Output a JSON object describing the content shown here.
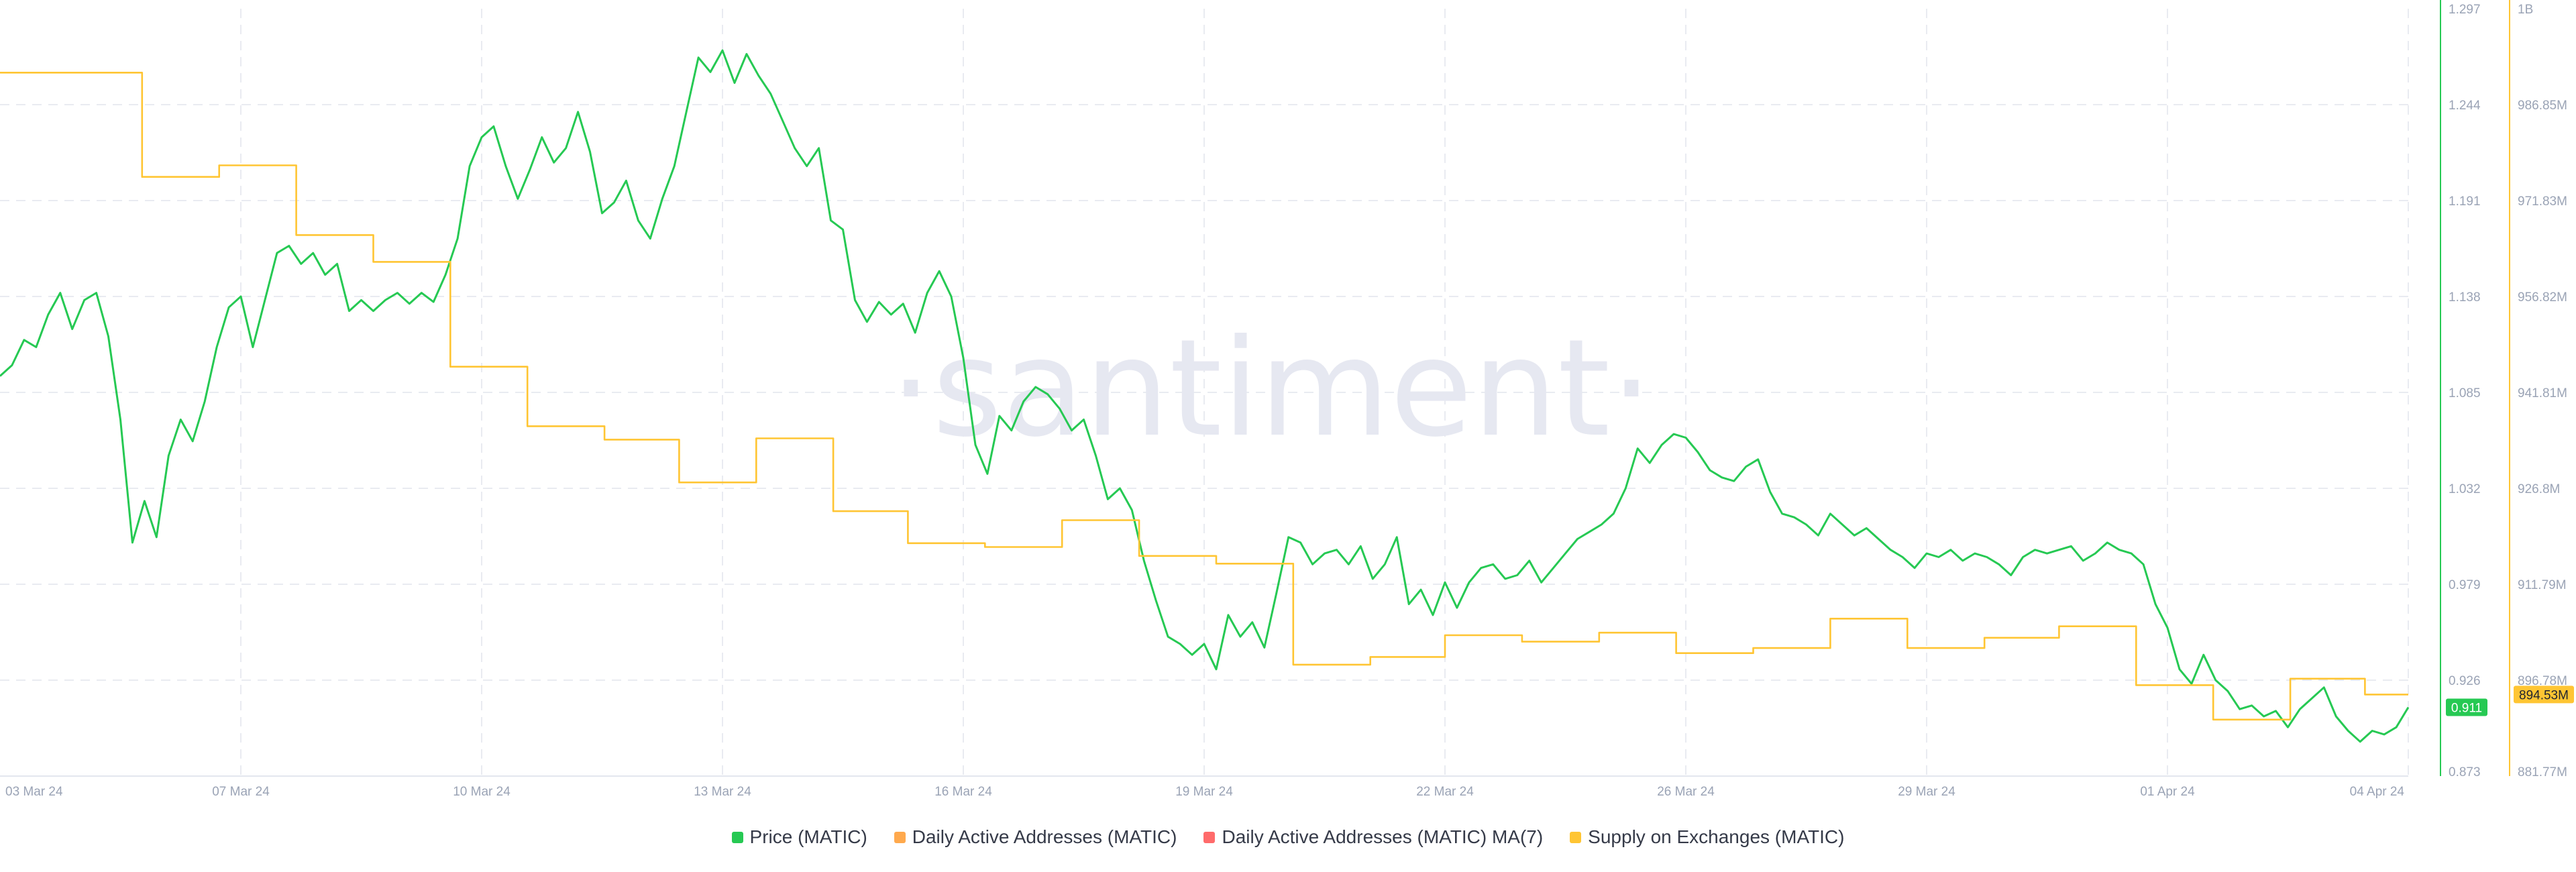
{
  "watermark": "·santiment·",
  "chart_data": {
    "type": "line",
    "grid": true,
    "legend_placement": "bottom-center",
    "x_ticks": [
      "03 Mar 24",
      "07 Mar 24",
      "10 Mar 24",
      "13 Mar 24",
      "16 Mar 24",
      "19 Mar 24",
      "22 Mar 24",
      "26 Mar 24",
      "29 Mar 24",
      "01 Apr 24",
      "04 Apr 24"
    ],
    "x_range": [
      0,
      1000
    ],
    "price_axis": {
      "ticks": [
        "1.297",
        "1.244",
        "1.191",
        "1.138",
        "1.085",
        "1.032",
        "0.979",
        "0.926",
        "0.873"
      ],
      "range": [
        0.873,
        1.297
      ],
      "color": "#26c953",
      "current_value_label": "0.911"
    },
    "supply_axis": {
      "ticks": [
        "1B",
        "986.85M",
        "971.83M",
        "956.82M",
        "941.81M",
        "926.8M",
        "911.79M",
        "896.78M",
        "881.77M"
      ],
      "range": [
        881.77,
        1001.8
      ],
      "unit": "M",
      "color": "#ffc533",
      "current_value_label": "894.53M"
    },
    "series": [
      {
        "name": "Price (MATIC)",
        "axis": "price",
        "color": "#26c953",
        "points": [
          [
            0,
            1.094
          ],
          [
            5,
            1.1
          ],
          [
            10,
            1.114
          ],
          [
            15,
            1.11
          ],
          [
            20,
            1.128
          ],
          [
            25,
            1.14
          ],
          [
            30,
            1.12
          ],
          [
            35,
            1.136
          ],
          [
            40,
            1.14
          ],
          [
            45,
            1.116
          ],
          [
            50,
            1.07
          ],
          [
            55,
            1.002
          ],
          [
            60,
            1.025
          ],
          [
            65,
            1.005
          ],
          [
            70,
            1.05
          ],
          [
            75,
            1.07
          ],
          [
            80,
            1.058
          ],
          [
            85,
            1.08
          ],
          [
            90,
            1.11
          ],
          [
            95,
            1.132
          ],
          [
            100,
            1.138
          ],
          [
            105,
            1.11
          ],
          [
            110,
            1.136
          ],
          [
            115,
            1.162
          ],
          [
            120,
            1.166
          ],
          [
            125,
            1.156
          ],
          [
            130,
            1.162
          ],
          [
            135,
            1.15
          ],
          [
            140,
            1.156
          ],
          [
            145,
            1.13
          ],
          [
            150,
            1.136
          ],
          [
            155,
            1.13
          ],
          [
            160,
            1.136
          ],
          [
            165,
            1.14
          ],
          [
            170,
            1.134
          ],
          [
            175,
            1.14
          ],
          [
            180,
            1.135
          ],
          [
            185,
            1.15
          ],
          [
            190,
            1.17
          ],
          [
            195,
            1.21
          ],
          [
            200,
            1.226
          ],
          [
            205,
            1.232
          ],
          [
            210,
            1.21
          ],
          [
            215,
            1.192
          ],
          [
            220,
            1.208
          ],
          [
            225,
            1.226
          ],
          [
            230,
            1.212
          ],
          [
            235,
            1.22
          ],
          [
            240,
            1.24
          ],
          [
            245,
            1.218
          ],
          [
            250,
            1.184
          ],
          [
            255,
            1.19
          ],
          [
            260,
            1.202
          ],
          [
            265,
            1.18
          ],
          [
            270,
            1.17
          ],
          [
            275,
            1.192
          ],
          [
            280,
            1.21
          ],
          [
            285,
            1.24
          ],
          [
            290,
            1.27
          ],
          [
            295,
            1.262
          ],
          [
            300,
            1.274
          ],
          [
            305,
            1.256
          ],
          [
            310,
            1.272
          ],
          [
            315,
            1.26
          ],
          [
            320,
            1.25
          ],
          [
            325,
            1.235
          ],
          [
            330,
            1.22
          ],
          [
            335,
            1.21
          ],
          [
            340,
            1.22
          ],
          [
            345,
            1.18
          ],
          [
            350,
            1.175
          ],
          [
            355,
            1.136
          ],
          [
            360,
            1.124
          ],
          [
            365,
            1.135
          ],
          [
            370,
            1.128
          ],
          [
            375,
            1.134
          ],
          [
            380,
            1.118
          ],
          [
            385,
            1.14
          ],
          [
            390,
            1.152
          ],
          [
            395,
            1.138
          ],
          [
            400,
            1.104
          ],
          [
            405,
            1.056
          ],
          [
            410,
            1.04
          ],
          [
            415,
            1.072
          ],
          [
            420,
            1.064
          ],
          [
            425,
            1.08
          ],
          [
            430,
            1.088
          ],
          [
            435,
            1.084
          ],
          [
            440,
            1.076
          ],
          [
            445,
            1.064
          ],
          [
            450,
            1.07
          ],
          [
            455,
            1.05
          ],
          [
            460,
            1.026
          ],
          [
            465,
            1.032
          ],
          [
            470,
            1.02
          ],
          [
            475,
            0.992
          ],
          [
            480,
            0.97
          ],
          [
            485,
            0.95
          ],
          [
            490,
            0.946
          ],
          [
            495,
            0.94
          ],
          [
            500,
            0.946
          ],
          [
            505,
            0.932
          ],
          [
            510,
            0.962
          ],
          [
            515,
            0.95
          ],
          [
            520,
            0.958
          ],
          [
            525,
            0.944
          ],
          [
            530,
            0.974
          ],
          [
            535,
            1.005
          ],
          [
            540,
            1.002
          ],
          [
            545,
            0.99
          ],
          [
            550,
            0.996
          ],
          [
            555,
            0.998
          ],
          [
            560,
            0.99
          ],
          [
            565,
            1.0
          ],
          [
            570,
            0.982
          ],
          [
            575,
            0.99
          ],
          [
            580,
            1.005
          ],
          [
            585,
            0.968
          ],
          [
            590,
            0.976
          ],
          [
            595,
            0.962
          ],
          [
            600,
            0.98
          ],
          [
            605,
            0.966
          ],
          [
            610,
            0.98
          ],
          [
            615,
            0.988
          ],
          [
            620,
            0.99
          ],
          [
            625,
            0.982
          ],
          [
            630,
            0.984
          ],
          [
            635,
            0.992
          ],
          [
            640,
            0.98
          ],
          [
            645,
            0.988
          ],
          [
            650,
            0.996
          ],
          [
            655,
            1.004
          ],
          [
            660,
            1.008
          ],
          [
            665,
            1.012
          ],
          [
            670,
            1.018
          ],
          [
            675,
            1.032
          ],
          [
            680,
            1.054
          ],
          [
            685,
            1.046
          ],
          [
            690,
            1.056
          ],
          [
            695,
            1.062
          ],
          [
            700,
            1.06
          ],
          [
            705,
            1.052
          ],
          [
            710,
            1.042
          ],
          [
            715,
            1.038
          ],
          [
            720,
            1.036
          ],
          [
            725,
            1.044
          ],
          [
            730,
            1.048
          ],
          [
            735,
            1.03
          ],
          [
            740,
            1.018
          ],
          [
            745,
            1.016
          ],
          [
            750,
            1.012
          ],
          [
            755,
            1.006
          ],
          [
            760,
            1.018
          ],
          [
            765,
            1.012
          ],
          [
            770,
            1.006
          ],
          [
            775,
            1.01
          ],
          [
            780,
            1.004
          ],
          [
            785,
            0.998
          ],
          [
            790,
            0.994
          ],
          [
            795,
            0.988
          ],
          [
            800,
            0.996
          ],
          [
            805,
            0.994
          ],
          [
            810,
            0.998
          ],
          [
            815,
            0.992
          ],
          [
            820,
            0.996
          ],
          [
            825,
            0.994
          ],
          [
            830,
            0.99
          ],
          [
            835,
            0.984
          ],
          [
            840,
            0.994
          ],
          [
            845,
            0.998
          ],
          [
            850,
            0.996
          ],
          [
            855,
            0.998
          ],
          [
            860,
            1.0
          ],
          [
            865,
            0.992
          ],
          [
            870,
            0.996
          ],
          [
            875,
            1.002
          ],
          [
            880,
            0.998
          ],
          [
            885,
            0.996
          ],
          [
            890,
            0.99
          ],
          [
            895,
            0.968
          ],
          [
            900,
            0.955
          ],
          [
            905,
            0.932
          ],
          [
            910,
            0.924
          ],
          [
            915,
            0.94
          ],
          [
            920,
            0.926
          ],
          [
            925,
            0.92
          ],
          [
            930,
            0.91
          ],
          [
            935,
            0.912
          ],
          [
            940,
            0.906
          ],
          [
            945,
            0.909
          ],
          [
            950,
            0.9
          ],
          [
            955,
            0.91
          ],
          [
            960,
            0.916
          ],
          [
            965,
            0.922
          ],
          [
            970,
            0.906
          ],
          [
            975,
            0.898
          ],
          [
            980,
            0.892
          ],
          [
            985,
            0.898
          ],
          [
            990,
            0.896
          ],
          [
            995,
            0.9
          ],
          [
            1000,
            0.911
          ]
        ]
      },
      {
        "name": "Daily Active Addresses (MATIC)",
        "axis": "supply",
        "color": "#ffa94d",
        "points": []
      },
      {
        "name": "Daily Active Addresses (MATIC) MA(7)",
        "axis": "supply",
        "color": "#ff6b6b",
        "points": []
      },
      {
        "name": "Supply on Exchanges (MATIC)",
        "axis": "supply",
        "color": "#ffc533",
        "step": true,
        "points": [
          [
            0,
            991.8
          ],
          [
            59,
            991.8
          ],
          [
            59,
            975.5
          ],
          [
            91,
            975.5
          ],
          [
            91,
            977.3
          ],
          [
            123,
            977.3
          ],
          [
            123,
            966.4
          ],
          [
            155,
            966.4
          ],
          [
            155,
            962.2
          ],
          [
            187,
            962.2
          ],
          [
            187,
            945.8
          ],
          [
            219,
            945.8
          ],
          [
            219,
            936.5
          ],
          [
            251,
            936.5
          ],
          [
            251,
            934.4
          ],
          [
            282,
            934.4
          ],
          [
            282,
            927.7
          ],
          [
            314,
            927.7
          ],
          [
            314,
            934.6
          ],
          [
            346,
            934.6
          ],
          [
            346,
            923.2
          ],
          [
            377,
            923.2
          ],
          [
            377,
            918.2
          ],
          [
            409,
            918.2
          ],
          [
            409,
            917.6
          ],
          [
            441,
            917.6
          ],
          [
            441,
            921.8
          ],
          [
            473,
            921.8
          ],
          [
            473,
            916.2
          ],
          [
            505,
            916.2
          ],
          [
            505,
            915.0
          ],
          [
            537,
            915.0
          ],
          [
            537,
            899.2
          ],
          [
            569,
            899.2
          ],
          [
            569,
            900.4
          ],
          [
            600,
            900.4
          ],
          [
            600,
            903.8
          ],
          [
            632,
            903.8
          ],
          [
            632,
            902.8
          ],
          [
            664,
            902.8
          ],
          [
            664,
            904.2
          ],
          [
            696,
            904.2
          ],
          [
            696,
            901.0
          ],
          [
            728,
            901.0
          ],
          [
            728,
            901.8
          ],
          [
            760,
            901.8
          ],
          [
            760,
            906.4
          ],
          [
            792,
            906.4
          ],
          [
            792,
            901.8
          ],
          [
            824,
            901.8
          ],
          [
            824,
            903.4
          ],
          [
            855,
            903.4
          ],
          [
            855,
            905.2
          ],
          [
            887,
            905.2
          ],
          [
            887,
            896.0
          ],
          [
            919,
            896.0
          ],
          [
            919,
            890.6
          ],
          [
            951,
            890.6
          ],
          [
            951,
            897.0
          ],
          [
            982,
            897.0
          ],
          [
            982,
            894.53
          ],
          [
            1000,
            894.53
          ]
        ]
      }
    ]
  }
}
